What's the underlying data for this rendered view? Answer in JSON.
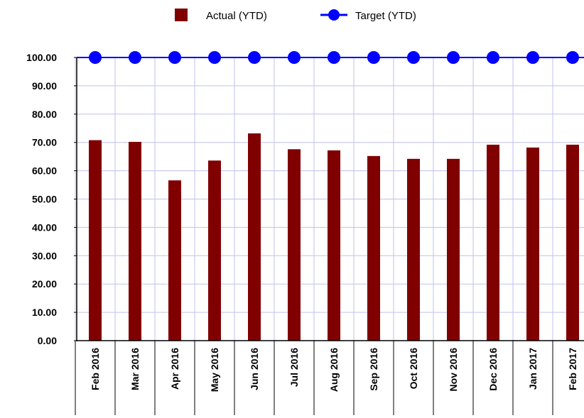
{
  "chart_data": {
    "type": "bar",
    "categories": [
      "Feb 2016",
      "Mar 2016",
      "Apr 2016",
      "May 2016",
      "Jun 2016",
      "Jul 2016",
      "Aug 2016",
      "Sep 2016",
      "Oct 2016",
      "Nov 2016",
      "Dec 2016",
      "Jan 2017",
      "Feb 2017"
    ],
    "series": [
      {
        "name": "Actual (YTD)",
        "kind": "bar",
        "color": "#800000",
        "values": [
          70.8,
          70.2,
          56.6,
          63.6,
          73.2,
          67.6,
          67.2,
          65.2,
          64.2,
          64.2,
          69.2,
          68.2,
          69.2
        ]
      },
      {
        "name": "Target (YTD)",
        "kind": "line",
        "color": "#0000ff",
        "values": [
          100,
          100,
          100,
          100,
          100,
          100,
          100,
          100,
          100,
          100,
          100,
          100,
          100
        ]
      }
    ],
    "yticks": [
      "0.00",
      "10.00",
      "20.00",
      "30.00",
      "40.00",
      "50.00",
      "60.00",
      "70.00",
      "80.00",
      "90.00",
      "100.00"
    ],
    "ylim": [
      0,
      100
    ],
    "xlabel": "",
    "ylabel": "",
    "title": "",
    "grid": true,
    "grid_color": "#c0c0ee",
    "legend_position": "top-center"
  }
}
